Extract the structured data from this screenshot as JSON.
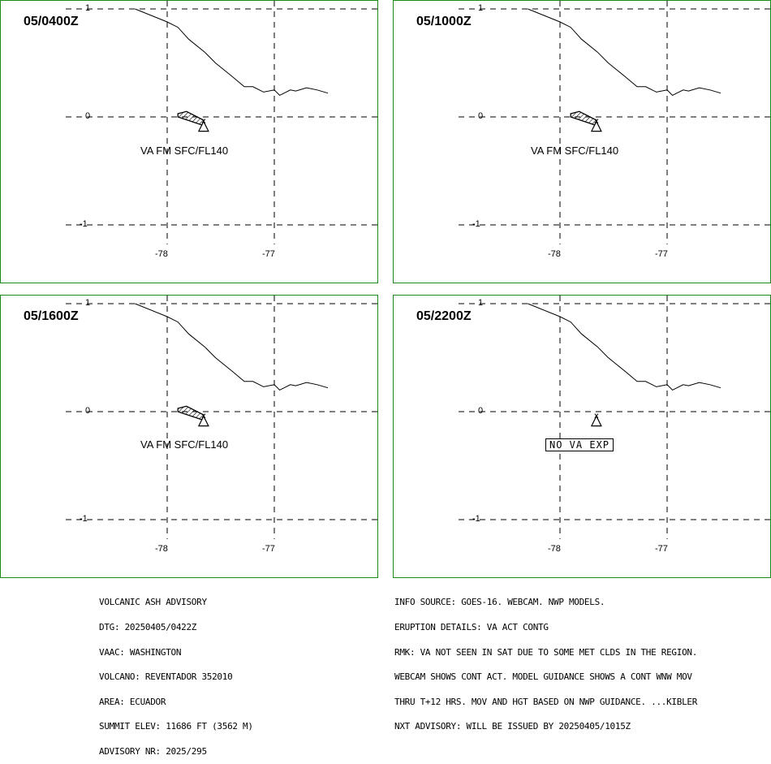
{
  "panels": [
    {
      "id": "p1",
      "title": "05/0400Z",
      "label": "VA FM SFC/FL140",
      "has_ash": true
    },
    {
      "id": "p2",
      "title": "05/1000Z",
      "label": "VA FM SFC/FL140",
      "has_ash": true
    },
    {
      "id": "p3",
      "title": "05/1600Z",
      "label": "VA FM SFC/FL140",
      "has_ash": true
    },
    {
      "id": "p4",
      "title": "05/2200Z",
      "label": "NO VA EXP",
      "has_ash": false
    }
  ],
  "axes": {
    "lat_ticks": [
      "1",
      "0",
      "-1"
    ],
    "lon_ticks": [
      "-78",
      "-77"
    ]
  },
  "advisory_left": [
    "VOLCANIC ASH ADVISORY",
    "DTG: 20250405/0422Z",
    "VAAC: WASHINGTON",
    "VOLCANO: REVENTADOR 352010",
    "AREA: ECUADOR",
    "SUMMIT ELEV: 11686 FT (3562 M)",
    "ADVISORY NR: 2025/295"
  ],
  "advisory_right": [
    "INFO SOURCE: GOES-16. WEBCAM. NWP MODELS.",
    "ERUPTION DETAILS: VA ACT CONTG",
    "RMK: VA NOT SEEN IN SAT DUE TO SOME MET CLDS IN THE REGION.",
    "WEBCAM SHOWS CONT ACT. MODEL GUIDANCE SHOWS A CONT WNW MOV",
    "THRU T+12 HRS. MOV AND HGT BASED ON NWP GUIDANCE. ...KIBLER",
    "NXT ADVISORY: WILL BE ISSUED BY 20250405/1015Z"
  ],
  "colors": {
    "frame": "#1a8a1a",
    "lines": "#000000"
  }
}
